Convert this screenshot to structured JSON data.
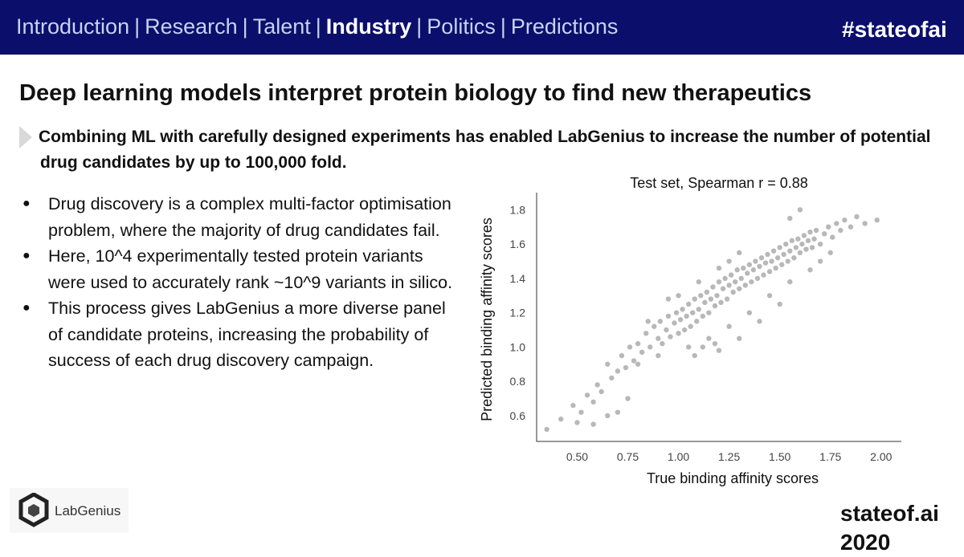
{
  "header": {
    "nav_items": [
      {
        "label": "Introduction",
        "active": false
      },
      {
        "label": "Research",
        "active": false
      },
      {
        "label": "Talent",
        "active": false
      },
      {
        "label": "Industry",
        "active": true
      },
      {
        "label": "Politics",
        "active": false
      },
      {
        "label": "Predictions",
        "active": false
      }
    ],
    "separator": "|",
    "hashtag": "#stateofai",
    "bg_color": "#0b0f6b"
  },
  "slide": {
    "title": "Deep learning models interpret protein biology to find new therapeutics",
    "subtitle_line1": "Combining ML with carefully designed experiments has enabled LabGenius to increase the number of potential",
    "subtitle_line2": "drug candidates by up to 100,000 fold.",
    "bullets": [
      "Drug discovery is a complex multi-factor optimisation problem, where the majority of drug candidates fail.",
      "Here, 10^4 experimentally tested protein variants were used to accurately rank ~10^9 variants in silico.",
      "This process gives LabGenius a more diverse panel of candidate proteins, increasing the probability of success of each drug discovery campaign."
    ],
    "bullet_glyph": "●"
  },
  "logo": {
    "text": "LabGenius",
    "icon": "labgenius-cube-icon"
  },
  "footer": {
    "text": "stateof.ai 2020"
  },
  "chart_data": {
    "type": "scatter",
    "title": "Test  set,  Spearman  r = 0.88",
    "xlabel": "True binding affinity scores",
    "ylabel": "Predicted binding affinity scores",
    "xlim": [
      0.3,
      2.1
    ],
    "ylim": [
      0.45,
      1.9
    ],
    "xticks": [
      "0.50",
      "0.75",
      "1.00",
      "1.25",
      "1.50",
      "1.75",
      "2.00"
    ],
    "yticks": [
      "0.6",
      "0.8",
      "1.0",
      "1.2",
      "1.4",
      "1.6",
      "1.8"
    ],
    "point_color": "#000000",
    "points": [
      [
        0.35,
        0.52
      ],
      [
        0.42,
        0.58
      ],
      [
        0.48,
        0.66
      ],
      [
        0.52,
        0.62
      ],
      [
        0.55,
        0.72
      ],
      [
        0.58,
        0.68
      ],
      [
        0.6,
        0.78
      ],
      [
        0.62,
        0.74
      ],
      [
        0.65,
        0.9
      ],
      [
        0.67,
        0.82
      ],
      [
        0.7,
        0.86
      ],
      [
        0.72,
        0.95
      ],
      [
        0.74,
        0.88
      ],
      [
        0.76,
        1.0
      ],
      [
        0.78,
        0.92
      ],
      [
        0.8,
        1.02
      ],
      [
        0.82,
        0.97
      ],
      [
        0.84,
        1.08
      ],
      [
        0.86,
        1.0
      ],
      [
        0.88,
        1.12
      ],
      [
        0.9,
        1.05
      ],
      [
        0.91,
        1.15
      ],
      [
        0.92,
        1.02
      ],
      [
        0.94,
        1.1
      ],
      [
        0.95,
        1.18
      ],
      [
        0.96,
        1.06
      ],
      [
        0.98,
        1.14
      ],
      [
        0.99,
        1.2
      ],
      [
        1.0,
        1.08
      ],
      [
        1.01,
        1.16
      ],
      [
        1.02,
        1.22
      ],
      [
        1.03,
        1.1
      ],
      [
        1.04,
        1.18
      ],
      [
        1.05,
        1.25
      ],
      [
        1.06,
        1.12
      ],
      [
        1.07,
        1.2
      ],
      [
        1.08,
        1.28
      ],
      [
        1.09,
        1.15
      ],
      [
        1.1,
        1.22
      ],
      [
        1.11,
        1.3
      ],
      [
        1.12,
        1.18
      ],
      [
        1.13,
        1.26
      ],
      [
        1.14,
        1.32
      ],
      [
        1.15,
        1.2
      ],
      [
        1.16,
        1.28
      ],
      [
        1.17,
        1.35
      ],
      [
        1.18,
        1.24
      ],
      [
        1.19,
        1.3
      ],
      [
        1.2,
        1.38
      ],
      [
        1.21,
        1.26
      ],
      [
        1.22,
        1.34
      ],
      [
        1.23,
        1.4
      ],
      [
        1.24,
        1.28
      ],
      [
        1.25,
        1.36
      ],
      [
        1.26,
        1.42
      ],
      [
        1.27,
        1.32
      ],
      [
        1.28,
        1.38
      ],
      [
        1.29,
        1.45
      ],
      [
        1.3,
        1.34
      ],
      [
        1.31,
        1.4
      ],
      [
        1.32,
        1.46
      ],
      [
        1.33,
        1.36
      ],
      [
        1.34,
        1.43
      ],
      [
        1.35,
        1.48
      ],
      [
        1.36,
        1.38
      ],
      [
        1.37,
        1.45
      ],
      [
        1.38,
        1.5
      ],
      [
        1.39,
        1.4
      ],
      [
        1.4,
        1.47
      ],
      [
        1.41,
        1.52
      ],
      [
        1.42,
        1.42
      ],
      [
        1.43,
        1.49
      ],
      [
        1.44,
        1.54
      ],
      [
        1.45,
        1.44
      ],
      [
        1.46,
        1.5
      ],
      [
        1.47,
        1.56
      ],
      [
        1.48,
        1.46
      ],
      [
        1.49,
        1.52
      ],
      [
        1.5,
        1.58
      ],
      [
        1.51,
        1.48
      ],
      [
        1.52,
        1.54
      ],
      [
        1.53,
        1.6
      ],
      [
        1.54,
        1.5
      ],
      [
        1.55,
        1.56
      ],
      [
        1.56,
        1.62
      ],
      [
        1.57,
        1.52
      ],
      [
        1.58,
        1.58
      ],
      [
        1.59,
        1.63
      ],
      [
        1.6,
        1.55
      ],
      [
        1.61,
        1.6
      ],
      [
        1.62,
        1.65
      ],
      [
        1.63,
        1.57
      ],
      [
        1.64,
        1.62
      ],
      [
        1.65,
        1.67
      ],
      [
        1.66,
        1.58
      ],
      [
        1.67,
        1.63
      ],
      [
        1.68,
        1.68
      ],
      [
        1.7,
        1.6
      ],
      [
        1.72,
        1.66
      ],
      [
        1.74,
        1.7
      ],
      [
        1.76,
        1.64
      ],
      [
        1.78,
        1.72
      ],
      [
        1.8,
        1.68
      ],
      [
        1.82,
        1.74
      ],
      [
        1.85,
        1.7
      ],
      [
        1.88,
        1.76
      ],
      [
        1.92,
        1.72
      ],
      [
        1.98,
        1.74
      ],
      [
        1.6,
        1.8
      ],
      [
        1.55,
        1.75
      ],
      [
        1.3,
        1.55
      ],
      [
        1.25,
        1.5
      ],
      [
        1.2,
        1.46
      ],
      [
        1.1,
        1.38
      ],
      [
        1.0,
        1.3
      ],
      [
        0.95,
        1.28
      ],
      [
        0.9,
        0.95
      ],
      [
        1.05,
        1.0
      ],
      [
        1.15,
        1.05
      ],
      [
        1.25,
        1.12
      ],
      [
        1.35,
        1.2
      ],
      [
        1.45,
        1.3
      ],
      [
        1.55,
        1.38
      ],
      [
        1.65,
        1.45
      ],
      [
        1.7,
        1.5
      ],
      [
        1.75,
        1.55
      ],
      [
        1.5,
        1.25
      ],
      [
        1.4,
        1.15
      ],
      [
        1.3,
        1.05
      ],
      [
        1.2,
        0.98
      ],
      [
        1.08,
        0.95
      ],
      [
        0.85,
        1.15
      ],
      [
        0.8,
        0.9
      ],
      [
        0.75,
        0.7
      ],
      [
        0.7,
        0.62
      ],
      [
        0.65,
        0.6
      ],
      [
        0.58,
        0.55
      ],
      [
        0.5,
        0.56
      ],
      [
        1.18,
        1.02
      ],
      [
        1.12,
        1.0
      ]
    ]
  }
}
